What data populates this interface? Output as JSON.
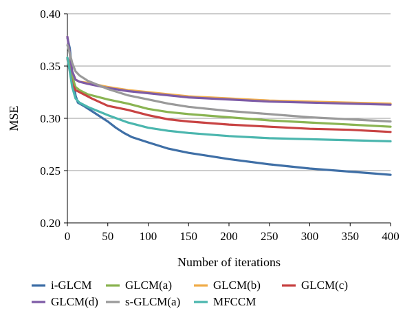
{
  "chart_data": {
    "type": "line",
    "title": "",
    "xlabel": "Number of iterations",
    "ylabel": "MSE",
    "xlim": [
      0,
      400
    ],
    "ylim": [
      0.2,
      0.4
    ],
    "xticks": [
      0,
      50,
      100,
      150,
      200,
      250,
      300,
      350,
      400
    ],
    "yticks": [
      0.2,
      0.25,
      0.3,
      0.35,
      0.4
    ],
    "xtick_labels": [
      "0",
      "50",
      "100",
      "150",
      "200",
      "250",
      "300",
      "350",
      "400"
    ],
    "ytick_labels": [
      "0.20",
      "0.25",
      "0.30",
      "0.35",
      "0.40"
    ],
    "grid": "horizontal",
    "legend_position": "bottom",
    "series": [
      {
        "name": "i-GLCM",
        "color": "#3f6fa6",
        "points": [
          [
            0,
            0.377
          ],
          [
            3,
            0.367
          ],
          [
            6,
            0.345
          ],
          [
            10,
            0.322
          ],
          [
            13,
            0.315
          ],
          [
            20,
            0.312
          ],
          [
            30,
            0.307
          ],
          [
            40,
            0.302
          ],
          [
            50,
            0.297
          ],
          [
            60,
            0.291
          ],
          [
            70,
            0.286
          ],
          [
            80,
            0.282
          ],
          [
            100,
            0.277
          ],
          [
            125,
            0.271
          ],
          [
            150,
            0.267
          ],
          [
            175,
            0.264
          ],
          [
            200,
            0.261
          ],
          [
            250,
            0.256
          ],
          [
            300,
            0.252
          ],
          [
            350,
            0.249
          ],
          [
            400,
            0.246
          ]
        ]
      },
      {
        "name": "GLCM(a)",
        "color": "#8ab452",
        "points": [
          [
            0,
            0.358
          ],
          [
            3,
            0.352
          ],
          [
            6,
            0.34
          ],
          [
            10,
            0.33
          ],
          [
            15,
            0.327
          ],
          [
            25,
            0.323
          ],
          [
            50,
            0.318
          ],
          [
            75,
            0.314
          ],
          [
            100,
            0.309
          ],
          [
            125,
            0.306
          ],
          [
            150,
            0.304
          ],
          [
            200,
            0.301
          ],
          [
            250,
            0.298
          ],
          [
            300,
            0.296
          ],
          [
            350,
            0.294
          ],
          [
            400,
            0.292
          ]
        ]
      },
      {
        "name": "GLCM(b)",
        "color": "#f0ad4b",
        "points": [
          [
            0,
            0.378
          ],
          [
            3,
            0.362
          ],
          [
            6,
            0.345
          ],
          [
            10,
            0.337
          ],
          [
            15,
            0.335
          ],
          [
            25,
            0.334
          ],
          [
            50,
            0.33
          ],
          [
            75,
            0.327
          ],
          [
            100,
            0.325
          ],
          [
            150,
            0.321
          ],
          [
            200,
            0.319
          ],
          [
            250,
            0.317
          ],
          [
            300,
            0.316
          ],
          [
            350,
            0.315
          ],
          [
            400,
            0.314
          ]
        ]
      },
      {
        "name": "GLCM(c)",
        "color": "#c84343",
        "points": [
          [
            0,
            0.357
          ],
          [
            3,
            0.345
          ],
          [
            6,
            0.333
          ],
          [
            10,
            0.327
          ],
          [
            20,
            0.323
          ],
          [
            30,
            0.319
          ],
          [
            50,
            0.312
          ],
          [
            75,
            0.308
          ],
          [
            100,
            0.303
          ],
          [
            125,
            0.299
          ],
          [
            150,
            0.297
          ],
          [
            200,
            0.294
          ],
          [
            250,
            0.292
          ],
          [
            300,
            0.29
          ],
          [
            350,
            0.289
          ],
          [
            400,
            0.287
          ]
        ]
      },
      {
        "name": "GLCM(d)",
        "color": "#7d5ba6",
        "points": [
          [
            0,
            0.378
          ],
          [
            3,
            0.362
          ],
          [
            6,
            0.345
          ],
          [
            10,
            0.337
          ],
          [
            15,
            0.335
          ],
          [
            25,
            0.333
          ],
          [
            50,
            0.329
          ],
          [
            75,
            0.326
          ],
          [
            100,
            0.324
          ],
          [
            150,
            0.32
          ],
          [
            200,
            0.318
          ],
          [
            250,
            0.316
          ],
          [
            300,
            0.315
          ],
          [
            350,
            0.314
          ],
          [
            400,
            0.313
          ]
        ]
      },
      {
        "name": "s-GLCM(a)",
        "color": "#9a9a9a",
        "points": [
          [
            0,
            0.37
          ],
          [
            3,
            0.362
          ],
          [
            6,
            0.353
          ],
          [
            10,
            0.345
          ],
          [
            15,
            0.341
          ],
          [
            25,
            0.336
          ],
          [
            50,
            0.328
          ],
          [
            75,
            0.322
          ],
          [
            100,
            0.318
          ],
          [
            125,
            0.314
          ],
          [
            150,
            0.311
          ],
          [
            200,
            0.307
          ],
          [
            250,
            0.304
          ],
          [
            300,
            0.301
          ],
          [
            350,
            0.299
          ],
          [
            400,
            0.297
          ]
        ]
      },
      {
        "name": "MFCCM",
        "color": "#4bb6ae",
        "points": [
          [
            0,
            0.358
          ],
          [
            3,
            0.345
          ],
          [
            6,
            0.33
          ],
          [
            10,
            0.319
          ],
          [
            15,
            0.315
          ],
          [
            25,
            0.311
          ],
          [
            50,
            0.303
          ],
          [
            75,
            0.296
          ],
          [
            100,
            0.291
          ],
          [
            125,
            0.288
          ],
          [
            150,
            0.286
          ],
          [
            200,
            0.283
          ],
          [
            250,
            0.281
          ],
          [
            300,
            0.28
          ],
          [
            350,
            0.279
          ],
          [
            400,
            0.278
          ]
        ]
      }
    ]
  }
}
